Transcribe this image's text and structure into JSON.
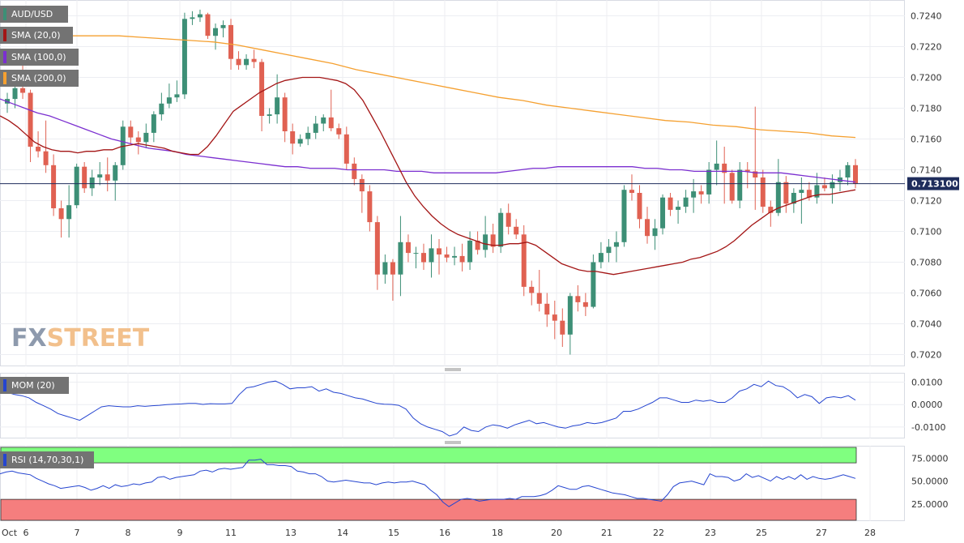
{
  "chart_data": [
    {
      "type": "candlestick",
      "legend": [
        "AUD/USD",
        "SMA (20,0)",
        "SMA (100,0)",
        "SMA (200,0)"
      ],
      "series_colors": {
        "up": "#3d8f76",
        "down": "#e06152",
        "sma20": "#a31515",
        "sma100": "#7b2fd0",
        "sma200": "#f5a030"
      },
      "ylim": [
        0.7015,
        0.7245
      ],
      "yticks": [
        "0.7020",
        "0.7040",
        "0.7060",
        "0.7080",
        "0.7100",
        "0.7120",
        "0.7140",
        "0.7160",
        "0.7180",
        "0.7200",
        "0.7220",
        "0.7240"
      ],
      "last_price": "0.713100",
      "xticks": [
        "Oct",
        "6",
        "7",
        "8",
        "9",
        "11",
        "13",
        "14",
        "15",
        "16",
        "18",
        "20",
        "21",
        "22",
        "23",
        "25",
        "27",
        "28"
      ],
      "candles": [
        [
          0.7183,
          0.719,
          0.7177,
          0.7186
        ],
        [
          0.7186,
          0.7196,
          0.718,
          0.7193
        ],
        [
          0.7193,
          0.7212,
          0.7186,
          0.719
        ],
        [
          0.719,
          0.7192,
          0.7145,
          0.7155
        ],
        [
          0.7155,
          0.7165,
          0.7148,
          0.7152
        ],
        [
          0.7152,
          0.7172,
          0.7138,
          0.7143
        ],
        [
          0.7143,
          0.715,
          0.711,
          0.7115
        ],
        [
          0.7115,
          0.712,
          0.7096,
          0.7108
        ],
        [
          0.7108,
          0.713,
          0.7096,
          0.7117
        ],
        [
          0.7117,
          0.7144,
          0.7115,
          0.7142
        ],
        [
          0.7142,
          0.7145,
          0.7125,
          0.7128
        ],
        [
          0.7128,
          0.714,
          0.7123,
          0.7135
        ],
        [
          0.7135,
          0.7145,
          0.713,
          0.7137
        ],
        [
          0.7137,
          0.7148,
          0.7126,
          0.7133
        ],
        [
          0.7133,
          0.7145,
          0.712,
          0.7143
        ],
        [
          0.7143,
          0.7172,
          0.714,
          0.7168
        ],
        [
          0.7168,
          0.7172,
          0.7157,
          0.7161
        ],
        [
          0.7161,
          0.7165,
          0.715,
          0.7158
        ],
        [
          0.7158,
          0.717,
          0.7154,
          0.7164
        ],
        [
          0.7164,
          0.7178,
          0.7158,
          0.7176
        ],
        [
          0.7176,
          0.719,
          0.7172,
          0.7183
        ],
        [
          0.7183,
          0.7196,
          0.718,
          0.7187
        ],
        [
          0.7187,
          0.7198,
          0.7184,
          0.7189
        ],
        [
          0.7189,
          0.7242,
          0.7186,
          0.7238
        ],
        [
          0.7238,
          0.7243,
          0.7234,
          0.7239
        ],
        [
          0.7239,
          0.7244,
          0.7236,
          0.7241
        ],
        [
          0.7241,
          0.7242,
          0.7225,
          0.7227
        ],
        [
          0.7227,
          0.7235,
          0.7218,
          0.7232
        ],
        [
          0.7232,
          0.7237,
          0.7226,
          0.7234
        ],
        [
          0.7234,
          0.7238,
          0.7205,
          0.7212
        ],
        [
          0.7212,
          0.7217,
          0.7205,
          0.7208
        ],
        [
          0.7208,
          0.7215,
          0.7205,
          0.7212
        ],
        [
          0.7212,
          0.7218,
          0.7206,
          0.721
        ],
        [
          0.721,
          0.7212,
          0.7165,
          0.7175
        ],
        [
          0.7175,
          0.718,
          0.717,
          0.7176
        ],
        [
          0.7176,
          0.7202,
          0.717,
          0.7187
        ],
        [
          0.7187,
          0.719,
          0.7158,
          0.7165
        ],
        [
          0.7165,
          0.717,
          0.715,
          0.7157
        ],
        [
          0.7157,
          0.7163,
          0.7155,
          0.716
        ],
        [
          0.716,
          0.7168,
          0.7156,
          0.7164
        ],
        [
          0.7164,
          0.7175,
          0.716,
          0.717
        ],
        [
          0.717,
          0.7176,
          0.7165,
          0.7174
        ],
        [
          0.7174,
          0.7192,
          0.7165,
          0.7167
        ],
        [
          0.7167,
          0.717,
          0.716,
          0.7163
        ],
        [
          0.7163,
          0.7168,
          0.714,
          0.7144
        ],
        [
          0.7144,
          0.7148,
          0.713,
          0.7134
        ],
        [
          0.7134,
          0.7137,
          0.7112,
          0.7126
        ],
        [
          0.7126,
          0.713,
          0.71,
          0.7106
        ],
        [
          0.7106,
          0.711,
          0.7062,
          0.7072
        ],
        [
          0.7072,
          0.7085,
          0.7066,
          0.708
        ],
        [
          0.708,
          0.7082,
          0.7055,
          0.7072
        ],
        [
          0.7072,
          0.711,
          0.7058,
          0.7093
        ],
        [
          0.7093,
          0.7098,
          0.708,
          0.7086
        ],
        [
          0.7086,
          0.709,
          0.7076,
          0.7086
        ],
        [
          0.7086,
          0.7092,
          0.7075,
          0.708
        ],
        [
          0.708,
          0.7098,
          0.707,
          0.7089
        ],
        [
          0.7089,
          0.7095,
          0.7072,
          0.7085
        ],
        [
          0.7085,
          0.709,
          0.708,
          0.7083
        ],
        [
          0.7083,
          0.709,
          0.7078,
          0.7084
        ],
        [
          0.7084,
          0.7092,
          0.7074,
          0.708
        ],
        [
          0.708,
          0.71,
          0.7075,
          0.7094
        ],
        [
          0.7094,
          0.71,
          0.7085,
          0.7088
        ],
        [
          0.7088,
          0.711,
          0.7083,
          0.7098
        ],
        [
          0.7098,
          0.7105,
          0.7086,
          0.709
        ],
        [
          0.709,
          0.7115,
          0.7086,
          0.7112
        ],
        [
          0.7112,
          0.7118,
          0.7098,
          0.7103
        ],
        [
          0.7103,
          0.7108,
          0.7095,
          0.7098
        ],
        [
          0.7098,
          0.7104,
          0.7058,
          0.7064
        ],
        [
          0.7064,
          0.7068,
          0.7052,
          0.706
        ],
        [
          0.706,
          0.7075,
          0.7048,
          0.7053
        ],
        [
          0.7053,
          0.706,
          0.7038,
          0.7046
        ],
        [
          0.7046,
          0.7055,
          0.703,
          0.7042
        ],
        [
          0.7042,
          0.705,
          0.7025,
          0.7033
        ],
        [
          0.7033,
          0.706,
          0.702,
          0.7058
        ],
        [
          0.7058,
          0.7065,
          0.7048,
          0.7054
        ],
        [
          0.7054,
          0.706,
          0.7045,
          0.7051
        ],
        [
          0.7051,
          0.7085,
          0.705,
          0.708
        ],
        [
          0.708,
          0.7093,
          0.7076,
          0.7086
        ],
        [
          0.7086,
          0.7095,
          0.708,
          0.709
        ],
        [
          0.709,
          0.71,
          0.708,
          0.7093
        ],
        [
          0.7093,
          0.713,
          0.709,
          0.7127
        ],
        [
          0.7127,
          0.7137,
          0.712,
          0.7125
        ],
        [
          0.7125,
          0.713,
          0.7102,
          0.7108
        ],
        [
          0.7108,
          0.7116,
          0.7092,
          0.7097
        ],
        [
          0.7097,
          0.7108,
          0.7088,
          0.7102
        ],
        [
          0.7102,
          0.7124,
          0.7098,
          0.7122
        ],
        [
          0.7122,
          0.7125,
          0.711,
          0.7114
        ],
        [
          0.7114,
          0.712,
          0.7105,
          0.7116
        ],
        [
          0.7116,
          0.7127,
          0.7112,
          0.7122
        ],
        [
          0.7122,
          0.7134,
          0.7112,
          0.7126
        ],
        [
          0.7126,
          0.713,
          0.7118,
          0.7124
        ],
        [
          0.7124,
          0.7145,
          0.7118,
          0.714
        ],
        [
          0.714,
          0.7159,
          0.713,
          0.7144
        ],
        [
          0.7144,
          0.7155,
          0.7118,
          0.7138
        ],
        [
          0.7138,
          0.714,
          0.7118,
          0.712
        ],
        [
          0.712,
          0.7145,
          0.7115,
          0.714
        ],
        [
          0.714,
          0.7145,
          0.7128,
          0.7139
        ],
        [
          0.7139,
          0.7181,
          0.7114,
          0.7135
        ],
        [
          0.7135,
          0.714,
          0.7112,
          0.7116
        ],
        [
          0.7116,
          0.712,
          0.7103,
          0.7112
        ],
        [
          0.7112,
          0.7147,
          0.711,
          0.7132
        ],
        [
          0.7132,
          0.7136,
          0.7112,
          0.7118
        ],
        [
          0.7118,
          0.7128,
          0.7112,
          0.7125
        ],
        [
          0.7125,
          0.7135,
          0.7105,
          0.7127
        ],
        [
          0.7127,
          0.7132,
          0.712,
          0.7122
        ],
        [
          0.7122,
          0.7138,
          0.7118,
          0.713
        ],
        [
          0.713,
          0.7135,
          0.7126,
          0.7128
        ],
        [
          0.7128,
          0.7137,
          0.7118,
          0.7132
        ],
        [
          0.7132,
          0.714,
          0.7126,
          0.7135
        ],
        [
          0.7135,
          0.7145,
          0.713,
          0.7143
        ],
        [
          0.7143,
          0.7147,
          0.7128,
          0.7131
        ]
      ],
      "sma20": [
        0.7175,
        0.7172,
        0.7168,
        0.7163,
        0.7158,
        0.7155,
        0.7153,
        0.7152,
        0.7152,
        0.7151,
        0.7152,
        0.7152,
        0.7153,
        0.7153,
        0.7155,
        0.7156,
        0.7157,
        0.7156,
        0.7155,
        0.7154,
        0.7152,
        0.7151,
        0.715,
        0.715,
        0.7155,
        0.7162,
        0.717,
        0.7178,
        0.7182,
        0.7186,
        0.719,
        0.7193,
        0.7196,
        0.7198,
        0.7199,
        0.72,
        0.72,
        0.72,
        0.7199,
        0.7198,
        0.7196,
        0.7192,
        0.7185,
        0.7175,
        0.7165,
        0.7154,
        0.7143,
        0.7132,
        0.7123,
        0.7116,
        0.711,
        0.7105,
        0.7101,
        0.7098,
        0.7096,
        0.7094,
        0.7092,
        0.7091,
        0.7091,
        0.7092,
        0.7092,
        0.7093,
        0.7091,
        0.7087,
        0.7083,
        0.7079,
        0.7077,
        0.7075,
        0.7074,
        0.7074,
        0.7073,
        0.7072,
        0.7073,
        0.7074,
        0.7075,
        0.7076,
        0.7077,
        0.7078,
        0.7079,
        0.708,
        0.7082,
        0.7083,
        0.7085,
        0.7087,
        0.709,
        0.7094,
        0.7099,
        0.7104,
        0.7108,
        0.7112,
        0.7115,
        0.7117,
        0.7119,
        0.7121,
        0.7123,
        0.7124,
        0.7124,
        0.7125,
        0.7126,
        0.7127
      ],
      "sma100": [
        0.7186,
        0.7183,
        0.718,
        0.7177,
        0.7175,
        0.7172,
        0.7169,
        0.7166,
        0.7163,
        0.716,
        0.7158,
        0.7156,
        0.7154,
        0.7153,
        0.7152,
        0.715,
        0.7149,
        0.7148,
        0.7147,
        0.7146,
        0.7145,
        0.7144,
        0.7143,
        0.7142,
        0.7142,
        0.7141,
        0.7141,
        0.7141,
        0.714,
        0.714,
        0.714,
        0.714,
        0.7139,
        0.7139,
        0.7139,
        0.7138,
        0.7138,
        0.7138,
        0.7138,
        0.7138,
        0.7138,
        0.7139,
        0.714,
        0.7141,
        0.7141,
        0.7142,
        0.7142,
        0.7142,
        0.7142,
        0.7142,
        0.7142,
        0.7142,
        0.7141,
        0.7141,
        0.714,
        0.714,
        0.7139,
        0.7139,
        0.7139,
        0.7139,
        0.7139,
        0.7138,
        0.7138,
        0.7138,
        0.7137,
        0.7136,
        0.7135,
        0.7134,
        0.7133,
        0.7132
      ],
      "sma200": [
        0.7229,
        0.7228,
        0.7228,
        0.7227,
        0.7227,
        0.7227,
        0.7226,
        0.7225,
        0.7224,
        0.7223,
        0.7221,
        0.7218,
        0.7215,
        0.7212,
        0.7209,
        0.7205,
        0.7202,
        0.7199,
        0.7196,
        0.7193,
        0.719,
        0.7187,
        0.7185,
        0.7182,
        0.718,
        0.7178,
        0.7176,
        0.7174,
        0.7172,
        0.7171,
        0.7169,
        0.7168,
        0.7166,
        0.7165,
        0.7164,
        0.7162,
        0.7161
      ]
    },
    {
      "type": "line",
      "legend": [
        "MOM (20)"
      ],
      "color": "#2545d0",
      "ylim": [
        -0.014,
        0.012
      ],
      "yticks": [
        "0.0100",
        "0.0000",
        "-0.0100"
      ],
      "values": [
        0.006,
        0.0055,
        0.0045,
        0.004,
        0.003,
        0.001,
        -0.0005,
        -0.002,
        -0.004,
        -0.005,
        -0.006,
        -0.007,
        -0.005,
        -0.003,
        -0.001,
        -0.0005,
        -0.0008,
        -0.001,
        -0.001,
        -0.0005,
        -0.0008,
        -0.0005,
        -0.0003,
        0.0,
        0.0002,
        0.0003,
        0.0005,
        0.0005,
        0.0001,
        0.0004,
        0.0003,
        0.0003,
        0.0005,
        0.0045,
        0.0075,
        0.008,
        0.009,
        0.01,
        0.0105,
        0.009,
        0.007,
        0.0075,
        0.0075,
        0.008,
        0.006,
        0.007,
        0.0055,
        0.005,
        0.004,
        0.003,
        0.0025,
        0.0015,
        0.0005,
        0.0002,
        0.0001,
        -0.0003,
        -0.002,
        -0.006,
        -0.0085,
        -0.01,
        -0.011,
        -0.012,
        -0.014,
        -0.013,
        -0.01,
        -0.0115,
        -0.012,
        -0.01,
        -0.009,
        -0.0095,
        -0.0105,
        -0.009,
        -0.008,
        -0.007,
        -0.0085,
        -0.008,
        -0.009,
        -0.01,
        -0.0105,
        -0.0095,
        -0.009,
        -0.008,
        -0.0085,
        -0.008,
        -0.007,
        -0.006,
        -0.003,
        -0.003,
        -0.002,
        -0.0005,
        0.001,
        0.003,
        0.003,
        0.002,
        0.001,
        0.001,
        0.002,
        0.0015,
        0.002,
        0.001,
        0.001,
        0.003,
        0.006,
        0.007,
        0.009,
        0.008,
        0.0105,
        0.0085,
        0.008,
        0.006,
        0.003,
        0.0045,
        0.0035,
        0.0005,
        0.003,
        0.0035,
        0.003,
        0.004,
        0.002
      ]
    },
    {
      "type": "line",
      "legend": [
        "RSI (14,70,30,1)"
      ],
      "color": "#2545d0",
      "ylim": [
        7,
        87
      ],
      "yticks": [
        "75.0000",
        "50.0000",
        "25.0000"
      ],
      "bands": {
        "overbought": 70,
        "oversold": 30,
        "upper_color": "#80ff80",
        "lower_color": "#f57e7e"
      },
      "values": [
        58,
        60,
        61,
        59,
        58,
        57,
        53,
        50,
        47,
        45,
        42,
        43,
        44,
        45,
        43,
        40,
        42,
        45,
        42,
        46,
        44,
        45,
        47,
        46,
        48,
        49,
        54,
        55,
        52,
        54,
        55,
        56,
        57,
        61,
        62,
        60,
        63,
        64,
        63,
        64,
        65,
        73,
        73,
        74,
        68,
        68,
        67,
        67,
        66,
        61,
        60,
        58,
        58,
        55,
        50,
        49,
        50,
        51,
        50,
        49,
        48,
        48,
        46,
        48,
        49,
        48,
        49,
        49,
        50,
        48,
        46,
        40,
        35,
        27,
        22,
        26,
        30,
        31,
        30,
        28,
        29,
        30,
        30,
        30,
        31,
        30,
        33,
        33,
        33,
        34,
        36,
        40,
        45,
        43,
        41,
        41,
        44,
        45,
        43,
        41,
        39,
        37,
        36,
        35,
        33,
        31,
        31,
        30,
        29,
        28,
        35,
        44,
        48,
        49,
        50,
        48,
        46,
        58,
        55,
        55,
        54,
        50,
        52,
        58,
        54,
        56,
        53,
        50,
        55,
        52,
        55,
        52,
        57,
        52,
        55,
        53,
        52,
        53,
        55,
        57,
        55,
        53
      ]
    }
  ],
  "watermark": {
    "text_fx": "FX",
    "text_street": "STREET"
  }
}
